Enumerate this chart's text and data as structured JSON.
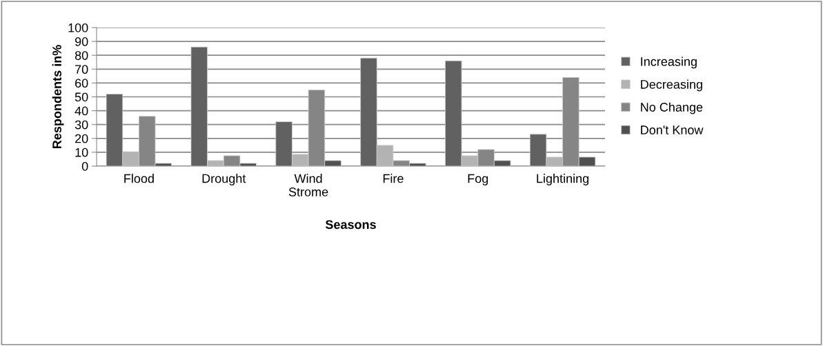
{
  "chart_data": {
    "type": "bar",
    "xlabel": "Seasons",
    "ylabel": "Respondents in%",
    "categories": [
      "Flood",
      "Drought",
      "Wind\nStrome",
      "Fire",
      "Fog",
      "Lightining"
    ],
    "series": [
      {
        "name": "Increasing",
        "color": "#616161",
        "values": [
          52,
          86,
          32,
          78,
          76,
          23
        ]
      },
      {
        "name": "Decreasing",
        "color": "#b3b3b3",
        "values": [
          10,
          4,
          8.5,
          15,
          7.5,
          6.5
        ]
      },
      {
        "name": "No Change",
        "color": "#858585",
        "values": [
          36,
          7.5,
          55,
          4,
          12,
          64
        ]
      },
      {
        "name": "Don't Know",
        "color": "#505050",
        "values": [
          2,
          2,
          4,
          2,
          4,
          6.5
        ]
      }
    ],
    "ylim": [
      0,
      100
    ],
    "yticks": [
      0,
      10,
      20,
      30,
      40,
      50,
      60,
      70,
      80,
      90,
      100
    ],
    "grid": "y",
    "legend": "right"
  }
}
